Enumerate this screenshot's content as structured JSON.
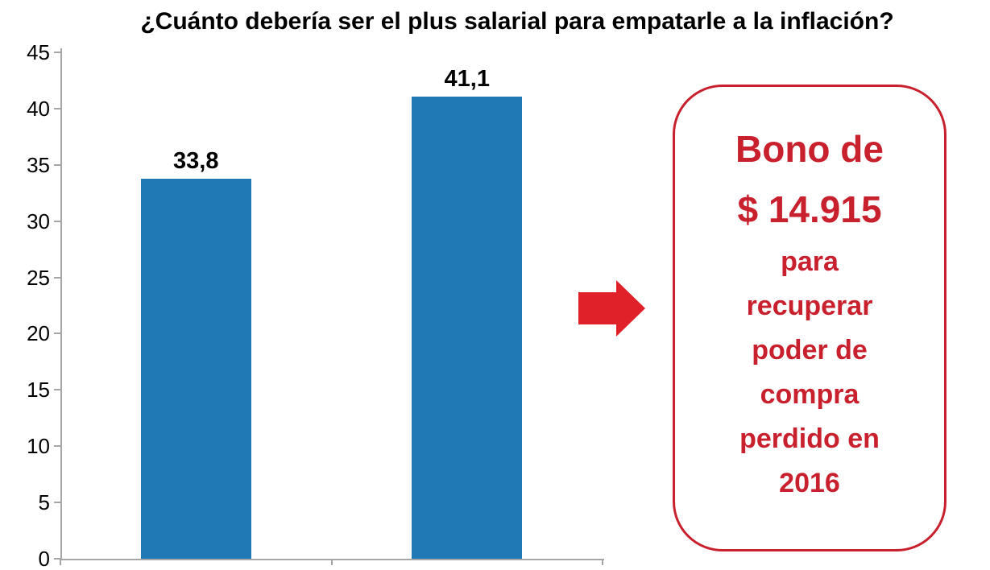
{
  "title": "¿Cuánto debería ser el plus salarial para empatarle a la inflación?",
  "chart_data": {
    "type": "bar",
    "categories": [
      "",
      ""
    ],
    "values": [
      33.8,
      41.1
    ],
    "value_labels": [
      "33,8",
      "41,1"
    ],
    "title": "¿Cuánto debería ser el plus salarial para empatarle a la inflación?",
    "xlabel": "",
    "ylabel": "",
    "ylim": [
      0,
      45
    ],
    "yticks": [
      0,
      5,
      10,
      15,
      20,
      25,
      30,
      35,
      40,
      45
    ],
    "grid": false,
    "legend": false,
    "bar_color": "#2079B5",
    "axis_color": "#A6A6A6"
  },
  "arrow": {
    "direction": "right",
    "color": "#E0212A"
  },
  "callout": {
    "border_color": "#C9202E",
    "text_color": "#C9202E",
    "lines_large": [
      "Bono de",
      "$ 14.915"
    ],
    "lines_small": [
      "para",
      "recuperar",
      "poder de",
      "compra",
      "perdido en",
      "2016"
    ]
  }
}
